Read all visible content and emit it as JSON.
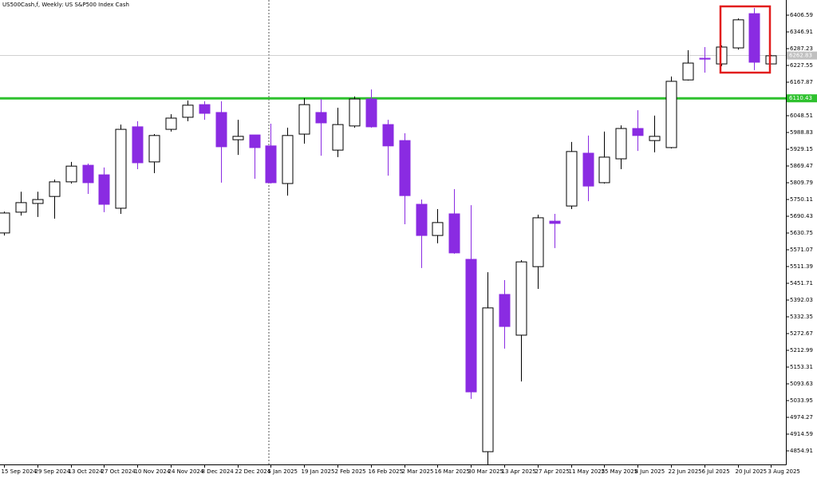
{
  "chart_data": {
    "type": "candlestick",
    "title": "US500Cash,f, Weekly:  US S&P500 Index Cash",
    "categories": [
      "15 Sep 2024",
      null,
      "29 Sep 2024",
      null,
      "13 Oct 2024",
      null,
      "27 Oct 2024",
      null,
      "10 Nov 2024",
      null,
      "24 Nov 2024",
      null,
      "8 Dec 2024",
      null,
      "22 Dec 2024",
      null,
      "5 Jan 2025",
      null,
      "19 Jan 2025",
      null,
      "2 Feb 2025",
      null,
      "16 Feb 2025",
      null,
      "2 Mar 2025",
      null,
      "16 Mar 2025",
      null,
      "30 Mar 2025",
      null,
      "13 Apr 2025",
      null,
      "27 Apr 2025",
      null,
      "11 May 2025",
      null,
      "25 May 2025",
      null,
      "8 Jun 2025",
      null,
      "22 Jun 2025",
      null,
      "6 Jul 2025",
      null,
      "20 Jul 2025",
      null,
      "3 Aug 2025"
    ],
    "open": [
      5631,
      5705,
      5736,
      5761,
      5813,
      5872,
      5838,
      5719,
      6009,
      5884,
      6000,
      6043,
      6088,
      6060,
      5963,
      5980,
      5941,
      5807,
      5983,
      6060,
      5926,
      6012,
      6108,
      6017,
      5960,
      5733,
      5622,
      5699,
      5537,
      4852,
      5412,
      5267,
      5511,
      5673,
      5727,
      5915,
      5810,
      5895,
      6003,
      5960,
      5935,
      6176,
      6253,
      6233,
      6290,
      6412,
      6233
    ],
    "high": [
      5707,
      5778,
      5778,
      5821,
      5884,
      5878,
      5864,
      6017,
      6029,
      5983,
      6054,
      6103,
      6100,
      6100,
      6034,
      5980,
      6020,
      6006,
      6111,
      6108,
      6077,
      6117,
      6142,
      6034,
      5986,
      5750,
      5716,
      5787,
      5730,
      5491,
      5463,
      5534,
      5696,
      5699,
      5955,
      5978,
      5992,
      6014,
      6068,
      6049,
      6188,
      6282,
      6293,
      6299,
      6395,
      6432,
      6265
    ],
    "low": [
      5622,
      5693,
      5688,
      5682,
      5807,
      5770,
      5705,
      5699,
      5858,
      5844,
      5992,
      6029,
      6034,
      5810,
      5909,
      5824,
      5807,
      5764,
      5949,
      5906,
      5901,
      6006,
      6006,
      5835,
      5662,
      5506,
      5594,
      5557,
      5040,
      4807,
      5219,
      5102,
      5432,
      5577,
      5716,
      5744,
      5807,
      5858,
      5923,
      5918,
      5932,
      6174,
      6202,
      6225,
      6284,
      6211,
      6233
    ],
    "close": [
      5702,
      5739,
      5750,
      5813,
      5869,
      5810,
      5733,
      6000,
      5881,
      5978,
      6040,
      6086,
      6057,
      5938,
      5975,
      5935,
      5810,
      5978,
      6088,
      6023,
      6017,
      6108,
      6009,
      5941,
      5764,
      5622,
      5668,
      5560,
      5065,
      5364,
      5298,
      5528,
      5685,
      5665,
      5921,
      5798,
      5901,
      6003,
      5978,
      5975,
      6171,
      6236,
      6250,
      6293,
      6390,
      6239,
      6262
    ],
    "color_up": "#ffffff",
    "color_down": "#8a2be2",
    "ylim": [
      4806.6,
      6460.6
    ],
    "yticks": [
      6406.59,
      6346.91,
      6287.23,
      6227.55,
      6167.87,
      6048.51,
      5988.83,
      5929.15,
      5869.47,
      5809.79,
      5750.11,
      5690.43,
      5630.75,
      5571.07,
      5511.39,
      5451.71,
      5392.03,
      5332.35,
      5272.67,
      5212.99,
      5153.31,
      5093.63,
      5033.95,
      4974.27,
      4914.59,
      4854.91
    ],
    "hline": {
      "value": 6110.43,
      "color": "#2ec12e"
    },
    "price_line": {
      "value": 6262.83,
      "color": "#c0c0c0"
    },
    "grid": false
  }
}
